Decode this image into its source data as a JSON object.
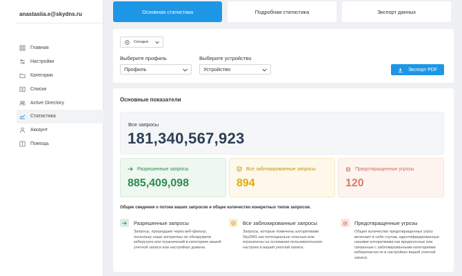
{
  "account": {
    "email": "anastasiia.e@skydns.ru"
  },
  "sidebar": {
    "items": [
      {
        "label": "Главная",
        "icon": "grid-icon"
      },
      {
        "label": "Настройки",
        "icon": "sliders-icon"
      },
      {
        "label": "Категории",
        "icon": "folder-icon"
      },
      {
        "label": "Списки",
        "icon": "list-icon"
      },
      {
        "label": "Active Directory",
        "icon": "users-icon"
      },
      {
        "label": "Статистика",
        "icon": "chart-icon",
        "active": true
      },
      {
        "label": "Аккаунт",
        "icon": "user-icon"
      },
      {
        "label": "Помощь",
        "icon": "help-icon"
      }
    ]
  },
  "tabs": [
    {
      "label": "Основная статистика",
      "active": true
    },
    {
      "label": "Подробная статистика"
    },
    {
      "label": "Экспорт данных"
    }
  ],
  "filters": {
    "date_value": "Сегодня",
    "profile_label": "Выберите профиль",
    "profile_value": "Профиль",
    "device_label": "Выберите устройство",
    "device_value": "Устройство",
    "export_label": "Экспорт PDF"
  },
  "stats": {
    "section_title": "Основные показатели",
    "all_label": "Все запросы",
    "all_value": "181,340,567,923",
    "allowed_label": "Разрешенные запросы",
    "allowed_value": "885,409,098",
    "blocked_label": "Все заблокированные запросы",
    "blocked_value": "894",
    "prevented_label": "Предотвращенные угрозы",
    "prevented_value": "120",
    "general_text": "Общие сведения о потоке ваших запросов и общее количество конкретных типов запросов."
  },
  "legend": [
    {
      "title": "Разрешенные запросы",
      "desc": "Запросы, прошедшие через веб-фильтр, поскольку наши алгоритмы не обнаружили киберугроз или ограничений в категориях вашей учетной записи или настройках домена."
    },
    {
      "title": "Все заблокированные запросы",
      "desc": "Запросы, которые помечены алгоритмами SkyDNS как потенциально опасные или ограничены на основании пользовательских настроек в вашей учетной записи."
    },
    {
      "title": "Предотвращенные угрозы",
      "desc": "Общее количество предотвращенных угроз включает в себя случаи, идентифицированные нашими алгоритмами как вредоносные или связанные с заблокированными категориями киберопасности в настройках вашей учетной записи."
    }
  ],
  "colors": {
    "accent": "#1e96e6",
    "allowed": "#2e8b4f",
    "blocked": "#e7a900",
    "prevented": "#e07767"
  }
}
